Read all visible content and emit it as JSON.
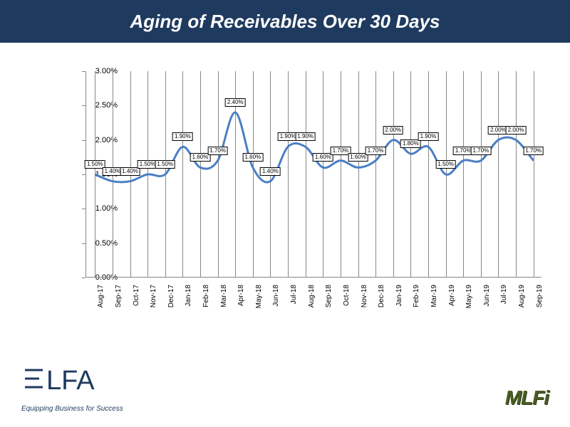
{
  "title": "Aging of Receivables Over 30 Days",
  "chart": {
    "type": "line",
    "line_color": "#4a7fc4",
    "line_width": 3,
    "background_color": "#ffffff",
    "grid_color": "#888888",
    "ylim": [
      0,
      3.0
    ],
    "ytick_step": 0.5,
    "y_format": "percent",
    "ytick_labels": [
      "0.00%",
      "0.50%",
      "1.00%",
      "1.50%",
      "2.00%",
      "2.50%",
      "3.00%"
    ],
    "categories": [
      "Aug-17",
      "Sep-17",
      "Oct-17",
      "Nov-17",
      "Dec-17",
      "Jan-18",
      "Feb-18",
      "Mar-18",
      "Apr-18",
      "May-18",
      "Jun-18",
      "Jul-18",
      "Aug-18",
      "Sep-18",
      "Oct-18",
      "Nov-18",
      "Dec-18",
      "Jan-19",
      "Feb-19",
      "Mar-19",
      "Apr-19",
      "May-19",
      "Jun-19",
      "Jul-19",
      "Aug-19",
      "Sep-19"
    ],
    "values": [
      1.5,
      1.4,
      1.4,
      1.5,
      1.5,
      1.9,
      1.6,
      1.7,
      2.4,
      1.6,
      1.4,
      1.9,
      1.9,
      1.6,
      1.7,
      1.6,
      1.7,
      2.0,
      1.8,
      1.9,
      1.5,
      1.7,
      1.7,
      2.0,
      2.0,
      1.7
    ],
    "data_labels": [
      "1.50%",
      "1.40%",
      "1.40%",
      "1.50%",
      "1.50%",
      "1.90%",
      "1.60%",
      "1.70%",
      "2.40%",
      "1.60%",
      "1.40%",
      "1.90%",
      "1.90%",
      "1.60%",
      "1.70%",
      "1.60%",
      "1.70%",
      "2.00%",
      "1.80%",
      "1.90%",
      "1.50%",
      "1.70%",
      "1.70%",
      "2.00%",
      "2.00%",
      "1.70%"
    ],
    "label_fontsize": 8,
    "label_border_color": "#000000",
    "label_bg_color": "#ffffff",
    "axis_fontsize": 11,
    "title_fontsize": 26,
    "title_color": "#ffffff",
    "title_bg": "#1f3a5f",
    "smooth": true
  },
  "logos": {
    "elfa": {
      "text": "ELFA",
      "tagline": "Equipping Business for Success",
      "color": "#1f3a5f"
    },
    "mlfi": {
      "text": "MLFi",
      "color": "#4a5d23"
    }
  }
}
